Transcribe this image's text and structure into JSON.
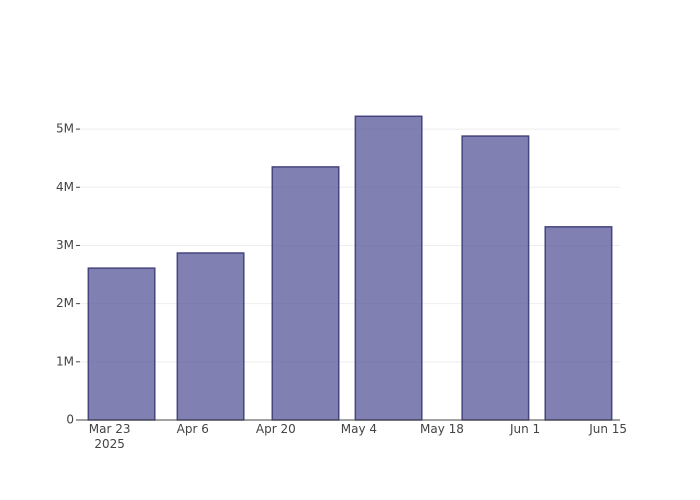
{
  "chart_data": {
    "type": "bar",
    "x": [
      "2025-03-25",
      "2025-04-09",
      "2025-04-25",
      "2025-05-09",
      "2025-05-27",
      "2025-06-10"
    ],
    "values": [
      2610000,
      2870000,
      4350000,
      5220000,
      4880000,
      3320000
    ],
    "color": "#555599",
    "xlim": [
      "2025-03-18",
      "2025-06-17"
    ],
    "xticks": [
      {
        "value": "2025-03-23",
        "label": "Mar 23\n2025"
      },
      {
        "value": "2025-04-06",
        "label": "Apr 6"
      },
      {
        "value": "2025-04-20",
        "label": "Apr 20"
      },
      {
        "value": "2025-05-04",
        "label": "May 4"
      },
      {
        "value": "2025-05-18",
        "label": "May 18"
      },
      {
        "value": "2025-06-01",
        "label": "Jun 1"
      },
      {
        "value": "2025-06-15",
        "label": "Jun 15"
      }
    ],
    "ylim": [
      0,
      5500000
    ],
    "yticks": [
      0,
      {
        "value": 1000000,
        "label": "1M"
      },
      {
        "value": 2000000,
        "label": "2M"
      },
      {
        "value": 3000000,
        "label": "3M"
      },
      {
        "value": 4000000,
        "label": "4M"
      },
      {
        "value": 5000000,
        "label": "5M"
      }
    ],
    "grid": true
  }
}
